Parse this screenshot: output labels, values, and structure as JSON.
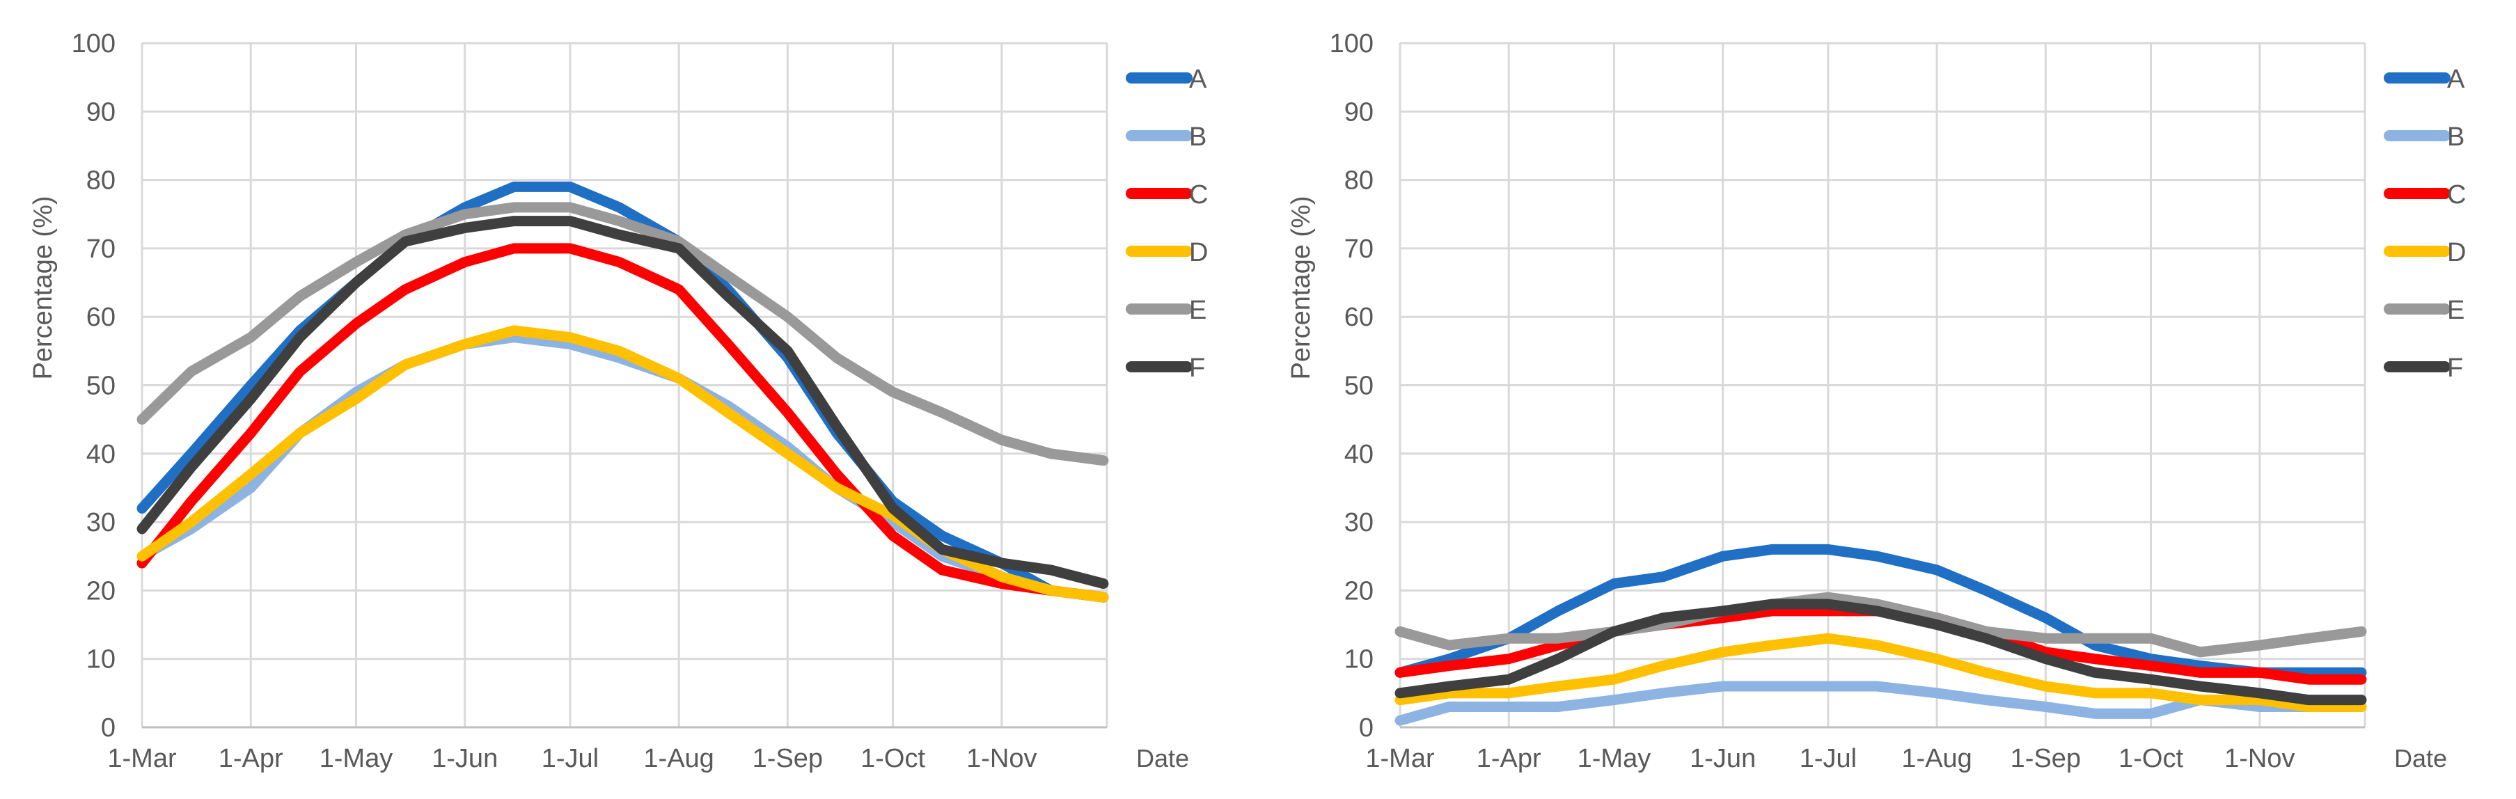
{
  "chart_data": [
    {
      "type": "line",
      "title": "",
      "xlabel": "Date",
      "ylabel": "Percentage (%)",
      "ylim": [
        0,
        100
      ],
      "yticks": [
        "0",
        "10",
        "20",
        "30",
        "40",
        "50",
        "60",
        "70",
        "80",
        "90",
        "100"
      ],
      "categories": [
        "1-Mar",
        "1-Apr",
        "1-May",
        "1-Jun",
        "1-Jul",
        "1-Aug",
        "1-Sep",
        "1-Oct",
        "1-Nov"
      ],
      "x": [
        "1-Mar",
        "15-Mar",
        "1-Apr",
        "15-Apr",
        "1-May",
        "15-May",
        "1-Jun",
        "15-Jun",
        "1-Jul",
        "15-Jul",
        "1-Aug",
        "15-Aug",
        "1-Sep",
        "15-Sep",
        "1-Oct",
        "15-Oct",
        "1-Nov",
        "15-Nov",
        "30-Nov"
      ],
      "grid": true,
      "legend_position": "right",
      "series": [
        {
          "name": "A",
          "color": "#1f6fc5",
          "values": [
            32,
            40,
            50,
            58,
            65,
            71,
            76,
            79,
            79,
            76,
            71,
            64,
            54,
            43,
            33,
            28,
            24,
            20,
            19
          ]
        },
        {
          "name": "B",
          "color": "#8db3e2",
          "values": [
            25,
            29,
            35,
            43,
            49,
            53,
            56,
            57,
            56,
            54,
            51,
            47,
            41,
            35,
            30,
            25,
            22,
            20,
            19
          ]
        },
        {
          "name": "C",
          "color": "#ff0000",
          "values": [
            24,
            33,
            43,
            52,
            59,
            64,
            68,
            70,
            70,
            68,
            64,
            56,
            46,
            37,
            28,
            23,
            21,
            20,
            19
          ]
        },
        {
          "name": "D",
          "color": "#ffc000",
          "values": [
            25,
            30,
            37,
            43,
            48,
            53,
            56,
            58,
            57,
            55,
            51,
            46,
            40,
            35,
            31,
            26,
            22,
            20,
            19
          ]
        },
        {
          "name": "E",
          "color": "#999999",
          "values": [
            45,
            52,
            57,
            63,
            68,
            72,
            75,
            76,
            76,
            74,
            71,
            66,
            60,
            54,
            49,
            46,
            42,
            40,
            39
          ]
        },
        {
          "name": "F",
          "color": "#3f3f3f",
          "values": [
            29,
            38,
            48,
            57,
            65,
            71,
            73,
            74,
            74,
            72,
            70,
            63,
            55,
            44,
            32,
            26,
            24,
            23,
            21
          ]
        }
      ]
    },
    {
      "type": "line",
      "title": "",
      "xlabel": "Date",
      "ylabel": "Percentage (%)",
      "ylim": [
        0,
        100
      ],
      "yticks": [
        "0",
        "10",
        "20",
        "30",
        "40",
        "50",
        "60",
        "70",
        "80",
        "90",
        "100"
      ],
      "categories": [
        "1-Mar",
        "1-Apr",
        "1-May",
        "1-Jun",
        "1-Jul",
        "1-Aug",
        "1-Sep",
        "1-Oct",
        "1-Nov"
      ],
      "x": [
        "1-Mar",
        "15-Mar",
        "1-Apr",
        "15-Apr",
        "1-May",
        "15-May",
        "1-Jun",
        "15-Jun",
        "1-Jul",
        "15-Jul",
        "1-Aug",
        "15-Aug",
        "1-Sep",
        "15-Sep",
        "1-Oct",
        "15-Oct",
        "1-Nov",
        "15-Nov",
        "30-Nov"
      ],
      "grid": true,
      "legend_position": "right",
      "series": [
        {
          "name": "A",
          "color": "#1f6fc5",
          "values": [
            8,
            10,
            13,
            17,
            21,
            22,
            25,
            26,
            26,
            25,
            23,
            20,
            16,
            12,
            10,
            9,
            8,
            8,
            8
          ]
        },
        {
          "name": "B",
          "color": "#8db3e2",
          "values": [
            1,
            3,
            3,
            3,
            4,
            5,
            6,
            6,
            6,
            6,
            5,
            4,
            3,
            2,
            2,
            4,
            3,
            3,
            3
          ]
        },
        {
          "name": "C",
          "color": "#ff0000",
          "values": [
            8,
            9,
            10,
            12,
            14,
            15,
            16,
            17,
            17,
            17,
            16,
            14,
            11,
            10,
            9,
            8,
            8,
            7,
            7
          ]
        },
        {
          "name": "D",
          "color": "#ffc000",
          "values": [
            4,
            5,
            5,
            6,
            7,
            9,
            11,
            12,
            13,
            12,
            10,
            8,
            6,
            5,
            5,
            4,
            4,
            3,
            3
          ]
        },
        {
          "name": "E",
          "color": "#999999",
          "values": [
            14,
            12,
            13,
            13,
            14,
            15,
            17,
            18,
            19,
            18,
            16,
            14,
            13,
            13,
            13,
            11,
            12,
            13,
            14
          ]
        },
        {
          "name": "F",
          "color": "#3f3f3f",
          "values": [
            5,
            6,
            7,
            10,
            14,
            16,
            17,
            18,
            18,
            17,
            15,
            13,
            10,
            8,
            7,
            6,
            5,
            4,
            4
          ]
        }
      ]
    }
  ]
}
